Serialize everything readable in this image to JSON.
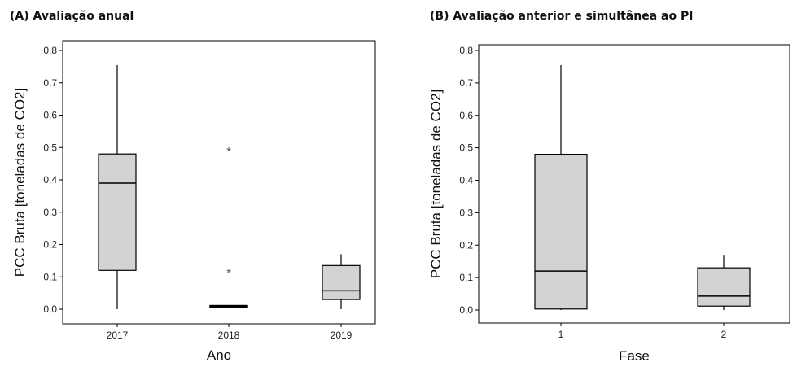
{
  "chart_data": [
    {
      "type": "box",
      "title": "(A) Avaliação anual",
      "xlabel": "Ano",
      "ylabel": "PCC Bruta [toneladas de CO2]",
      "ylim": [
        -0.04,
        0.82
      ],
      "yticks": [
        "0,0",
        "0,1",
        "0,2",
        "0,3",
        "0,4",
        "0,5",
        "0,6",
        "0,7",
        "0,8"
      ],
      "ytick_values": [
        0,
        0.1,
        0.2,
        0.3,
        0.4,
        0.5,
        0.6,
        0.7,
        0.8
      ],
      "categories": [
        "2017",
        "2018",
        "2019"
      ],
      "boxes": [
        {
          "min": 0.0,
          "q1": 0.12,
          "median": 0.39,
          "q3": 0.48,
          "max": 0.755,
          "outliers": []
        },
        {
          "min": 0.007,
          "q1": 0.007,
          "median": 0.009,
          "q3": 0.011,
          "max": 0.011,
          "outliers": [
            0.12,
            0.495
          ]
        },
        {
          "min": 0.0,
          "q1": 0.03,
          "median": 0.057,
          "q3": 0.135,
          "max": 0.17,
          "outliers": []
        }
      ],
      "box_fill": "#d3d3d3"
    },
    {
      "type": "box",
      "title": "(B) Avaliação anterior e simultânea ao PI",
      "xlabel": "Fase",
      "ylabel": "PCC Bruta [toneladas de CO2]",
      "ylim": [
        -0.04,
        0.82
      ],
      "yticks": [
        "0,0",
        "0,1",
        "0,2",
        "0,3",
        "0,4",
        "0,5",
        "0,6",
        "0,7",
        "0,8"
      ],
      "ytick_values": [
        0,
        0.1,
        0.2,
        0.3,
        0.4,
        0.5,
        0.6,
        0.7,
        0.8
      ],
      "categories": [
        "1",
        "2"
      ],
      "boxes": [
        {
          "min": 0.0,
          "q1": 0.003,
          "median": 0.12,
          "q3": 0.48,
          "max": 0.755,
          "outliers": []
        },
        {
          "min": 0.0,
          "q1": 0.012,
          "median": 0.043,
          "q3": 0.13,
          "max": 0.17,
          "outliers": []
        }
      ],
      "box_fill": "#d3d3d3"
    }
  ]
}
